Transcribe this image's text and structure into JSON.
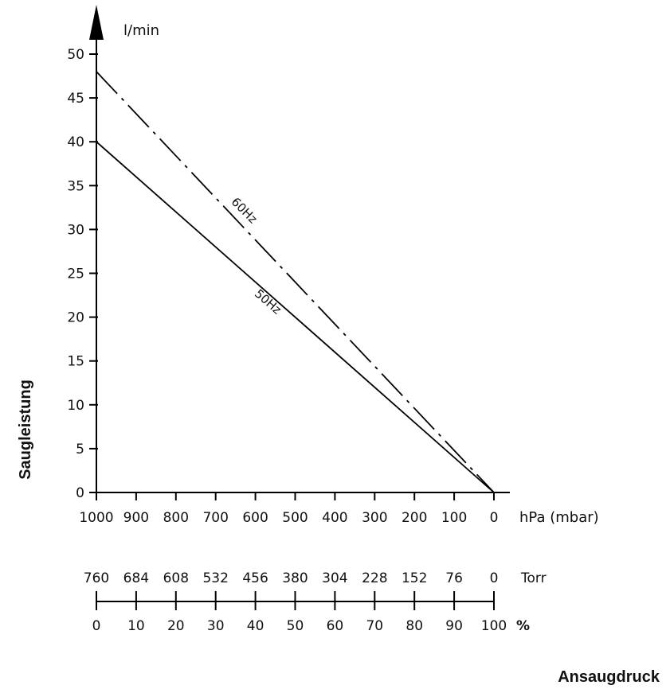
{
  "chart_data": {
    "type": "line",
    "title": "",
    "ylabel": "Saugleistung",
    "xlabel": "Ansaugdruck",
    "y_unit": "l/min",
    "x_unit": "hPa (mbar)",
    "x_reversed": true,
    "xlim": [
      0,
      1000
    ],
    "ylim": [
      0,
      50
    ],
    "x_ticks": [
      1000,
      900,
      800,
      700,
      600,
      500,
      400,
      300,
      200,
      100,
      0
    ],
    "y_ticks": [
      0,
      5,
      10,
      15,
      20,
      25,
      30,
      35,
      40,
      45,
      50
    ],
    "grid": false,
    "series": [
      {
        "name": "50Hz",
        "style": "solid",
        "x": [
          1000,
          0
        ],
        "y": [
          40,
          0
        ]
      },
      {
        "name": "60Hz",
        "style": "dash-dot",
        "x": [
          1000,
          0
        ],
        "y": [
          48,
          0
        ]
      }
    ],
    "secondary_scales": [
      {
        "unit": "Torr",
        "ticks": [
          "760",
          "684",
          "608",
          "532",
          "456",
          "380",
          "304",
          "228",
          "152",
          "76",
          "0"
        ]
      },
      {
        "unit": "%",
        "ticks": [
          "0",
          "10",
          "20",
          "30",
          "40",
          "50",
          "60",
          "70",
          "80",
          "90",
          "100"
        ]
      }
    ]
  }
}
